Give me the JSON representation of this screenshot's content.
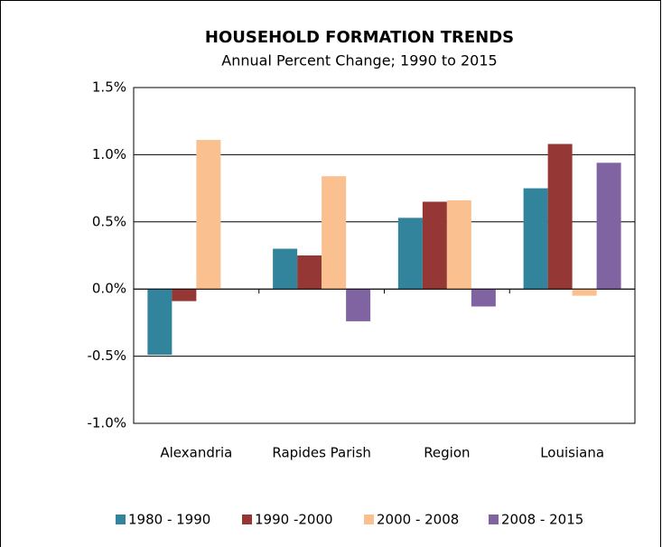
{
  "chart_data": {
    "type": "bar",
    "title": "HOUSEHOLD FORMATION TRENDS",
    "subtitle": "Annual Percent Change; 1990 to 2015",
    "categories": [
      "Alexandria",
      "Rapides Parish",
      "Region",
      "Louisiana"
    ],
    "series": [
      {
        "name": "1980 - 1990",
        "color": "#31849b",
        "values": [
          -0.49,
          0.3,
          0.53,
          0.75
        ]
      },
      {
        "name": "1990 -2000",
        "color": "#953735",
        "values": [
          -0.09,
          0.25,
          0.65,
          1.08
        ]
      },
      {
        "name": "2000 - 2008",
        "color": "#fac08f",
        "values": [
          1.11,
          0.84,
          0.66,
          -0.05
        ]
      },
      {
        "name": "2008 - 2015",
        "color": "#8064a2",
        "values": [
          null,
          -0.24,
          -0.13,
          0.94
        ]
      }
    ],
    "ylim": [
      -1.0,
      1.5
    ],
    "yticks": [
      {
        "value": -1.0,
        "label": "-1.0%"
      },
      {
        "value": -0.5,
        "label": "-0.5%"
      },
      {
        "value": 0.0,
        "label": "0.0%"
      },
      {
        "value": 0.5,
        "label": "0.5%"
      },
      {
        "value": 1.0,
        "label": "1.0%"
      },
      {
        "value": 1.5,
        "label": "1.5%"
      }
    ],
    "grid": true,
    "legend": "bottom"
  }
}
